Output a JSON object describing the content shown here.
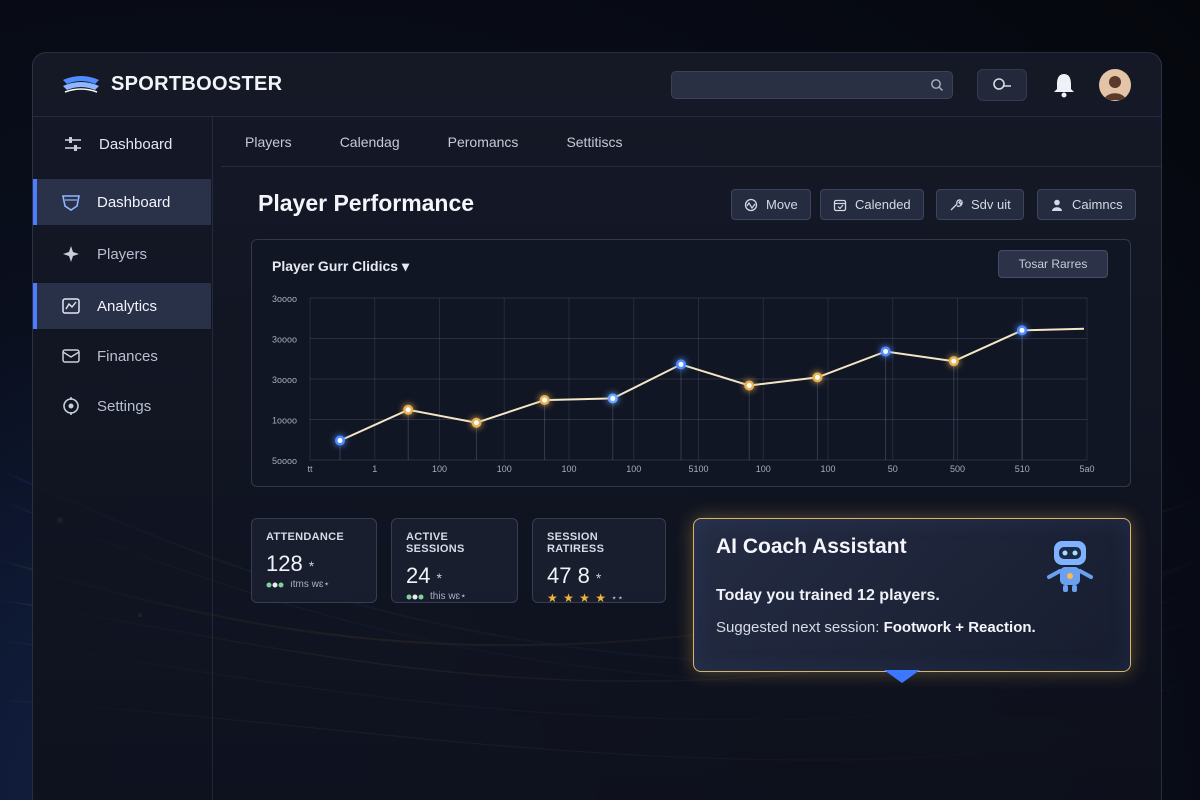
{
  "app": {
    "brand": "SPORTBOOSTER"
  },
  "header": {
    "search_value": "",
    "search_placeholder": ""
  },
  "sidebar": {
    "items": [
      {
        "label": "Dashboard",
        "icon": "equalizer-icon",
        "active": false
      },
      {
        "label": "Dashboard",
        "icon": "shield-icon",
        "active": true
      },
      {
        "label": "Players",
        "icon": "sparkle-icon",
        "active": false
      },
      {
        "label": "Analytics",
        "icon": "chart-box-icon",
        "active": true
      },
      {
        "label": "Finances",
        "icon": "envelope-icon",
        "active": false
      },
      {
        "label": "Settings",
        "icon": "gear-icon",
        "active": false
      }
    ]
  },
  "tabs": [
    "Players",
    "Calendag",
    "Peromancs",
    "Settitiscs"
  ],
  "main": {
    "title": "Player Performance",
    "actions": [
      {
        "label": "Move",
        "icon": "pulse-icon"
      },
      {
        "label": "Calended",
        "icon": "calendar-icon"
      },
      {
        "label": "Sdv uit",
        "icon": "wrench-icon"
      },
      {
        "label": "Caimncs",
        "icon": "user-icon"
      }
    ]
  },
  "chart_card": {
    "title": "Player Gurr Clidics ▾",
    "button_label": "Tosar Rarres"
  },
  "chart_data": {
    "type": "line",
    "title": "Player Gurr Clidics",
    "x_tick_labels": [
      "tt",
      "1",
      "100",
      "100",
      "100",
      "100",
      "5100",
      "100",
      "100",
      "50",
      "500",
      "510",
      "5a0"
    ],
    "y_tick_labels": [
      "5oooo",
      "1oooo",
      "3oooo",
      "3oooo",
      "3oooo"
    ],
    "ylim": [
      0,
      5
    ],
    "grid": true,
    "values": [
      0.6,
      1.55,
      1.15,
      1.85,
      1.9,
      2.95,
      2.3,
      2.55,
      3.35,
      3.05,
      4.0
    ],
    "point_colors": [
      "#4f8dff",
      "#e8b052",
      "#e8b052",
      "#e8b052",
      "#6aa8ff",
      "#4f8dff",
      "#e8b052",
      "#e8b052",
      "#4f8dff",
      "#e8b052",
      "#4f8dff"
    ],
    "line_color": "#f2e6c4"
  },
  "stats": [
    {
      "label": "ATTENDANCE",
      "value": "128",
      "suffix": "*",
      "foot": "ıtms wɛ⋆",
      "stars": ""
    },
    {
      "label": "ACTIVE SESSIONS",
      "value": "24",
      "suffix": "*",
      "foot": "this wɛ⋆",
      "stars": ""
    },
    {
      "label": "SESSION RATIRESS",
      "value": "47 8",
      "suffix": "*",
      "foot": "⋆⋆",
      "stars": "★ ★ ★ ★"
    }
  ],
  "ai": {
    "title": "AI Coach Assistant",
    "line1": "Today you trained 12 players.",
    "line2_prefix": "Suggested next session: ",
    "line2_bold": "Footwork + Reaction."
  },
  "colors": {
    "accent_blue": "#4a7dff",
    "accent_gold": "#e8b052",
    "ai_border": "#d8b46a"
  }
}
